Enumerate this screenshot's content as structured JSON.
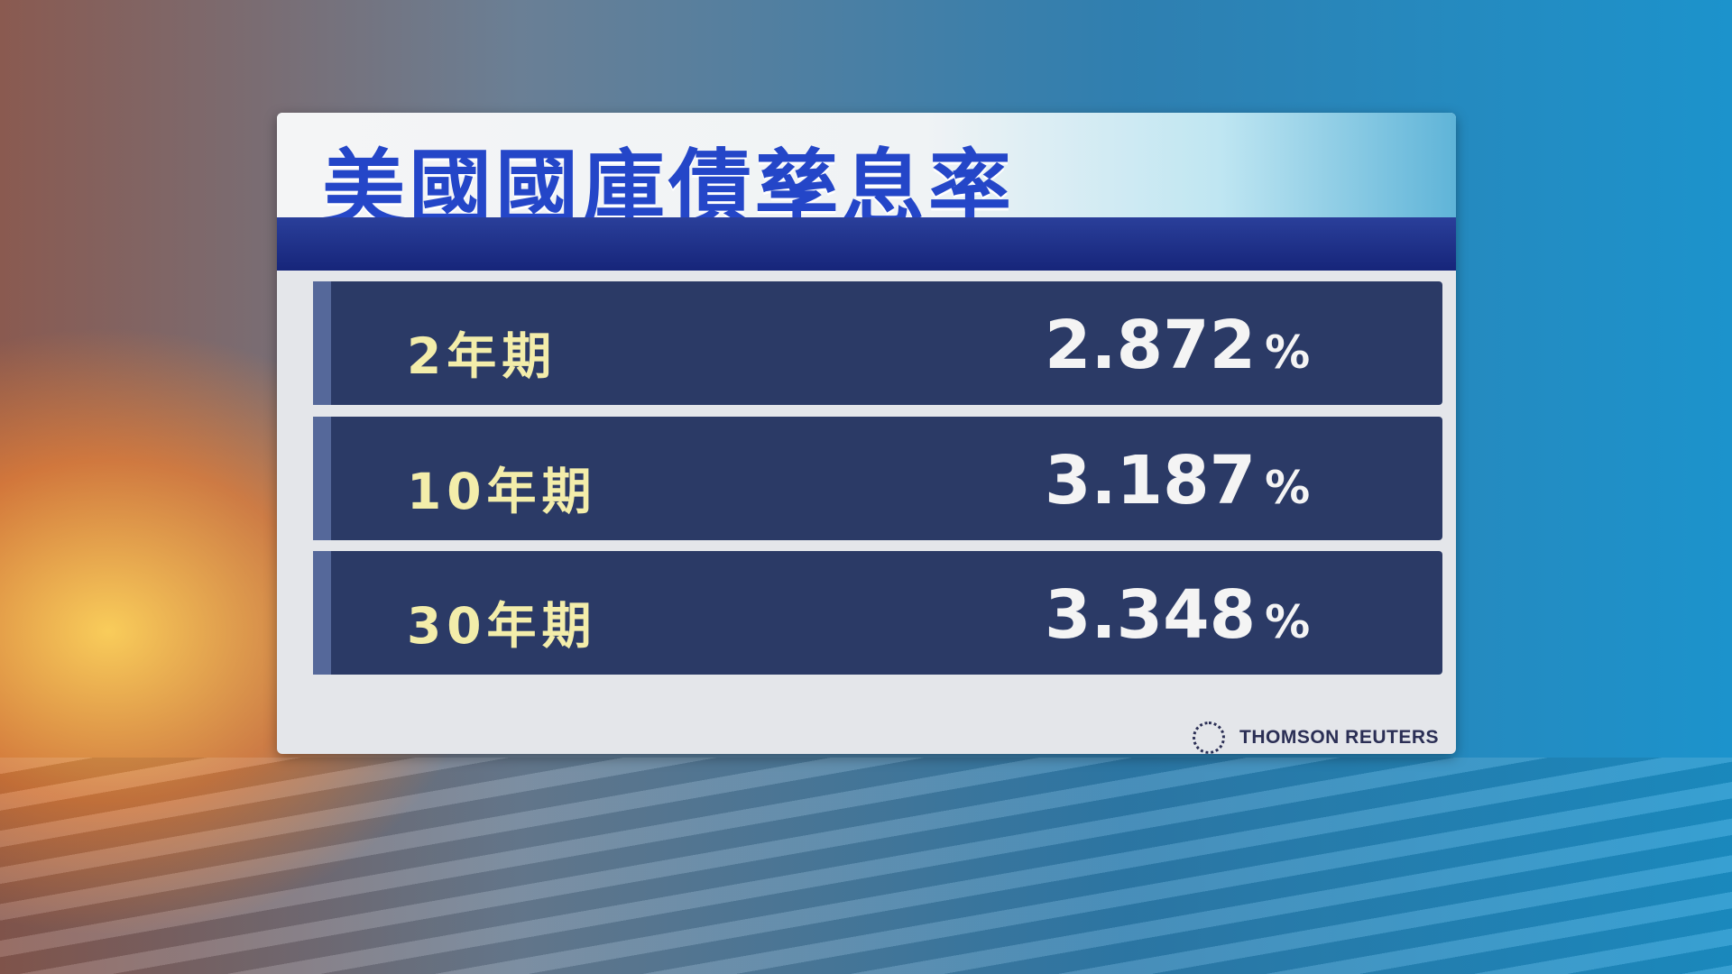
{
  "title": "美國國庫債孳息率",
  "rows": [
    {
      "label": "2年期",
      "value": "2.872",
      "unit": "%"
    },
    {
      "label": "10年期",
      "value": "3.187",
      "unit": "%"
    },
    {
      "label": "30年期",
      "value": "3.348",
      "unit": "%"
    }
  ],
  "source": "THOMSON REUTERS",
  "colors": {
    "title": "#2446c8",
    "row_bg": "#2b3a66",
    "label": "#f3edaa",
    "value": "#f4f4f4",
    "band": "#1e2f8a"
  }
}
